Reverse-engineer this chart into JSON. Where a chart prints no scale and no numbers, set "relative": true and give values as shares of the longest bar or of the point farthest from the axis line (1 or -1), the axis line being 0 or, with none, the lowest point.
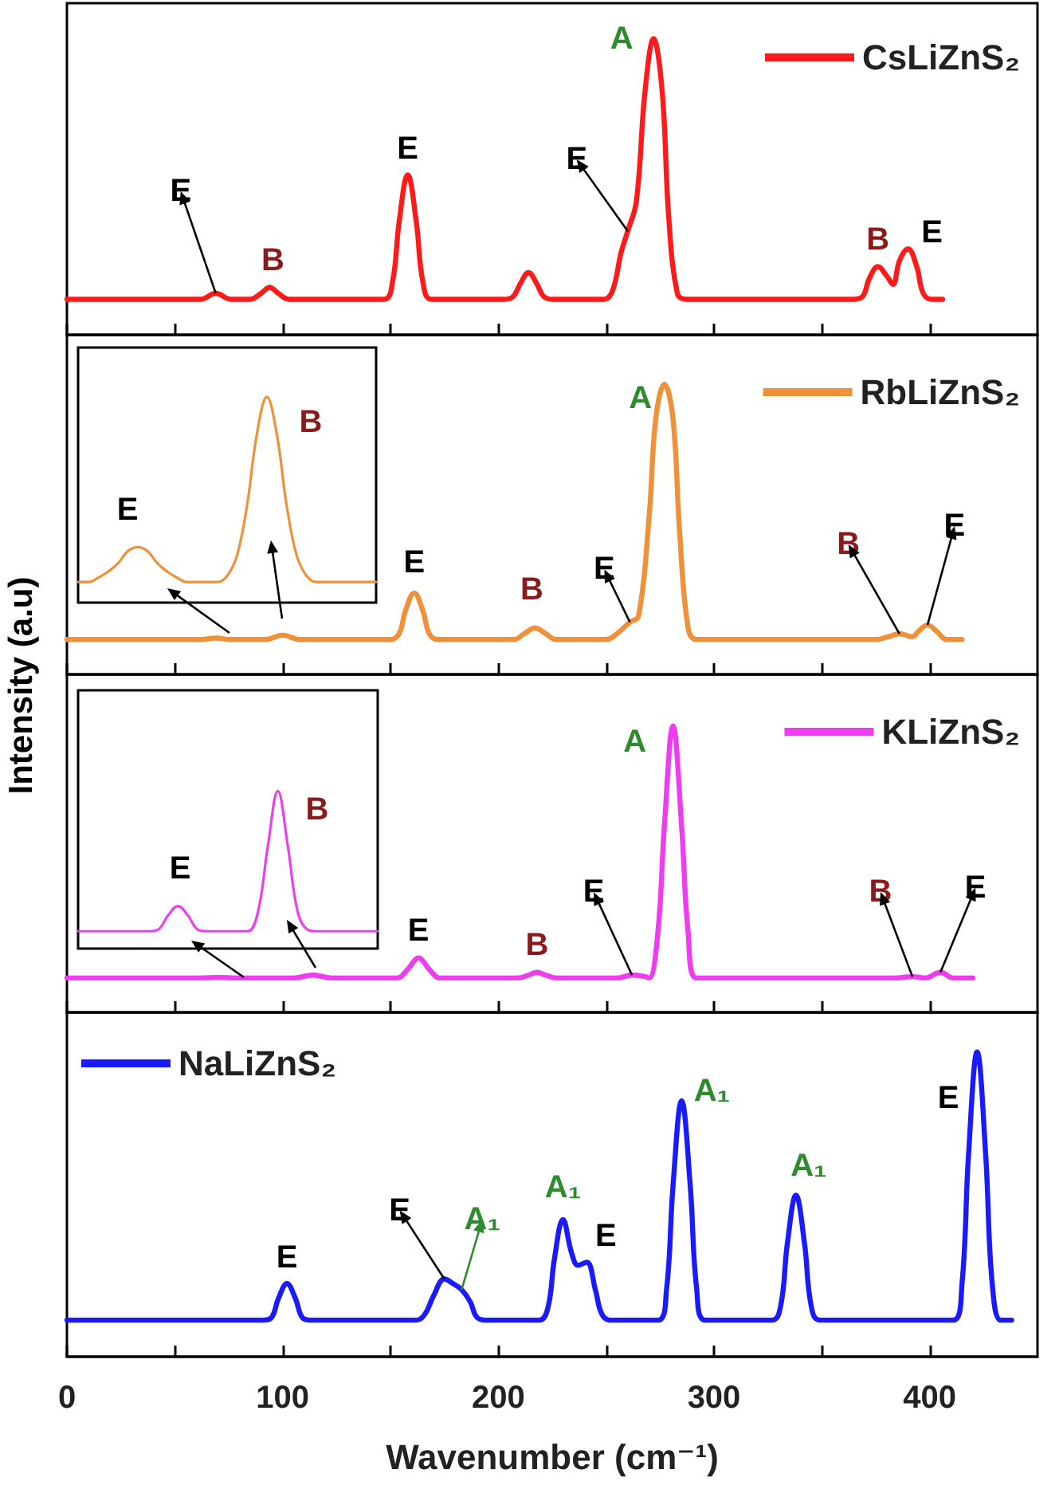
{
  "chart_data": [
    {
      "type": "line",
      "relative": true,
      "xlim": [
        0,
        450
      ],
      "xticks": [
        0,
        {
          "value": 50,
          "label": null
        },
        100,
        {
          "value": 150,
          "label": null
        },
        200,
        {
          "value": 250,
          "label": null
        },
        300,
        {
          "value": 350,
          "label": null
        },
        400
      ],
      "tick_labels": false,
      "legend": "top right",
      "series": [
        {
          "name": "CsLiZnS₂",
          "color": "#ff1a1a",
          "x": [
            0,
            62,
            69,
            76,
            85,
            90,
            94,
            98,
            103,
            147,
            151,
            154,
            158,
            162,
            165,
            169,
            203,
            207,
            210,
            214,
            218,
            221,
            225,
            249,
            253,
            257,
            260,
            264,
            268,
            272,
            276,
            279,
            283,
            287,
            365,
            369,
            372,
            376,
            380,
            383,
            386,
            390,
            394,
            397,
            401,
            406
          ],
          "values": [
            0.12,
            0.12,
            0.14,
            0.12,
            0.12,
            0.14,
            0.16,
            0.14,
            0.12,
            0.12,
            0.18,
            0.38,
            0.54,
            0.38,
            0.18,
            0.12,
            0.12,
            0.13,
            0.17,
            0.21,
            0.17,
            0.13,
            0.12,
            0.12,
            0.15,
            0.28,
            0.35,
            0.45,
            0.82,
            1,
            0.82,
            0.4,
            0.14,
            0.12,
            0.12,
            0.13,
            0.19,
            0.23,
            0.2,
            0.17,
            0.25,
            0.29,
            0.23,
            0.14,
            0.12,
            0.12
          ]
        }
      ],
      "annotations": [
        {
          "text": "E",
          "x": 69,
          "y": 0.14
        },
        {
          "text": "B",
          "x": 94,
          "y": 0.16
        },
        {
          "text": "E",
          "x": 158,
          "y": 0.54
        },
        {
          "text": "E",
          "x": 260,
          "y": 0.35
        },
        {
          "text": "A",
          "x": 272,
          "y": 1
        },
        {
          "text": "B",
          "x": 376,
          "y": 0.23
        },
        {
          "text": "E",
          "x": 390,
          "y": 0.29
        }
      ]
    },
    {
      "type": "line",
      "relative": true,
      "xlim": [
        0,
        450
      ],
      "xticks": [
        0,
        {
          "value": 50,
          "label": null
        },
        100,
        {
          "value": 150,
          "label": null
        },
        200,
        {
          "value": 250,
          "label": null
        },
        300,
        {
          "value": 350,
          "label": null
        },
        400
      ],
      "tick_labels": false,
      "legend": "top right",
      "series": [
        {
          "name": "RbLiZnS₂",
          "color": "#f0913a",
          "x": [
            0,
            62,
            69,
            76,
            92,
            100,
            108,
            150,
            154,
            157,
            161,
            165,
            168,
            172,
            207,
            212,
            217,
            222,
            227,
            250,
            255,
            261,
            265,
            270,
            273,
            277,
            281,
            284,
            288,
            292,
            375,
            381,
            386,
            392,
            395,
            399,
            403,
            408,
            415
          ],
          "values": [
            0.12,
            0.12,
            0.125,
            0.12,
            0.12,
            0.135,
            0.12,
            0.12,
            0.14,
            0.22,
            0.28,
            0.22,
            0.14,
            0.12,
            0.12,
            0.14,
            0.16,
            0.14,
            0.12,
            0.12,
            0.14,
            0.18,
            0.2,
            0.55,
            0.88,
            1,
            0.88,
            0.5,
            0.16,
            0.12,
            0.12,
            0.13,
            0.14,
            0.13,
            0.15,
            0.17,
            0.15,
            0.12,
            0.12
          ]
        }
      ],
      "annotations": [
        {
          "text": "E",
          "x": 261,
          "y": 0.18
        },
        {
          "text": "E",
          "x": 161,
          "y": 0.28
        },
        {
          "text": "B",
          "x": 217,
          "y": 0.16
        },
        {
          "text": "A",
          "x": 277,
          "y": 1
        },
        {
          "text": "B",
          "x": 386,
          "y": 0.14
        },
        {
          "text": "E",
          "x": 399,
          "y": 0.17
        }
      ]
    },
    {
      "type": "line",
      "relative": true,
      "tick_labels": false,
      "categories": [
        null,
        null,
        null,
        null,
        null,
        null,
        null,
        null,
        null,
        null,
        null,
        null,
        null,
        null,
        null,
        null,
        null,
        null,
        null,
        null,
        null,
        null,
        null,
        null,
        null,
        null,
        null,
        null,
        null,
        null,
        null
      ],
      "series": [
        {
          "color": "#f0913a",
          "values": [
            0.1,
            0.1,
            0.12,
            0.15,
            0.19,
            0.25,
            0.27,
            0.25,
            0.19,
            0.15,
            0.12,
            0.1,
            0.1,
            0.1,
            0.1,
            0.13,
            0.23,
            0.47,
            0.82,
            1,
            0.82,
            0.47,
            0.23,
            0.13,
            0.1,
            0.1,
            0.1,
            0.1,
            0.1,
            0.1,
            0.1
          ]
        }
      ],
      "annotations": [
        "E",
        "B"
      ]
    },
    {
      "type": "line",
      "relative": true,
      "xlim": [
        0,
        450
      ],
      "xticks": [
        0,
        {
          "value": 50,
          "label": null
        },
        100,
        {
          "value": 150,
          "label": null
        },
        200,
        {
          "value": 250,
          "label": null
        },
        300,
        {
          "value": 350,
          "label": null
        },
        400
      ],
      "tick_labels": false,
      "legend": "top right",
      "series": [
        {
          "name": "KLiZnS₂",
          "color": "#f03cf0",
          "x": [
            0,
            62,
            70,
            78,
            105,
            114,
            123,
            153,
            158,
            163,
            168,
            173,
            209,
            214,
            218,
            222,
            227,
            255,
            262,
            268,
            270,
            274,
            277,
            281,
            285,
            288,
            292,
            384,
            392,
            398,
            405,
            411,
            420
          ],
          "values": [
            0.12,
            0.12,
            0.122,
            0.12,
            0.12,
            0.13,
            0.12,
            0.12,
            0.15,
            0.19,
            0.15,
            0.12,
            0.12,
            0.13,
            0.14,
            0.13,
            0.12,
            0.12,
            0.13,
            0.125,
            0.12,
            0.28,
            0.65,
            1,
            0.65,
            0.28,
            0.12,
            0.12,
            0.125,
            0.12,
            0.14,
            0.12,
            0.12
          ]
        }
      ],
      "annotations": [
        {
          "text": "E",
          "x": 163,
          "y": 0.19
        },
        {
          "text": "B",
          "x": 218,
          "y": 0.14
        },
        {
          "text": "E",
          "x": 262,
          "y": 0.13
        },
        {
          "text": "A",
          "x": 281,
          "y": 1
        },
        {
          "text": "B",
          "x": 392,
          "y": 0.125
        },
        {
          "text": "E",
          "x": 405,
          "y": 0.14
        }
      ]
    },
    {
      "type": "line",
      "relative": true,
      "tick_labels": false,
      "categories": [
        null,
        null,
        null,
        null,
        null,
        null,
        null,
        null,
        null,
        null,
        null,
        null,
        null,
        null,
        null,
        null,
        null,
        null,
        null,
        null,
        null,
        null,
        null,
        null,
        null,
        null,
        null,
        null,
        null,
        null,
        null
      ],
      "series": [
        {
          "color": "#f03cf0",
          "values": [
            0.11,
            0.11,
            0.11,
            0.11,
            0.11,
            0.11,
            0.11,
            0.11,
            0.12,
            0.21,
            0.27,
            0.21,
            0.12,
            0.11,
            0.11,
            0.11,
            0.11,
            0.11,
            0.23,
            0.65,
            1,
            0.65,
            0.23,
            0.12,
            0.11,
            0.11,
            0.11,
            0.11,
            0.11,
            0.11,
            0.11
          ]
        }
      ],
      "annotations": [
        "E",
        "B"
      ]
    },
    {
      "type": "line",
      "relative": true,
      "xlim": [
        0,
        450
      ],
      "xticks": [
        0,
        {
          "value": 50,
          "label": null
        },
        100,
        {
          "value": 150,
          "label": null
        },
        200,
        {
          "value": 250,
          "label": null
        },
        300,
        {
          "value": 350,
          "label": null
        },
        400
      ],
      "tick_labels": "x",
      "legend": "top left",
      "xlabel": "Wavenumber (cm⁻¹)",
      "ylabel": "Intensity (a.u)",
      "series": [
        {
          "name": "NaLiZnS₂",
          "color": "#1a1aff",
          "x": [
            0,
            91,
            95,
            98,
            102,
            106,
            109,
            113,
            162,
            166,
            170,
            175,
            179,
            183,
            187,
            190,
            194,
            219,
            223,
            226,
            230,
            234,
            237,
            241,
            245,
            248,
            252,
            274,
            278,
            281,
            285,
            289,
            292,
            296,
            327,
            331,
            334,
            338,
            342,
            345,
            349,
            411,
            415,
            418,
            422,
            426,
            429,
            433,
            438
          ],
          "values": [
            0.12,
            0.12,
            0.13,
            0.19,
            0.24,
            0.19,
            0.13,
            0.12,
            0.12,
            0.14,
            0.2,
            0.255,
            0.24,
            0.22,
            0.18,
            0.13,
            0.12,
            0.12,
            0.16,
            0.32,
            0.45,
            0.34,
            0.3,
            0.31,
            0.22,
            0.14,
            0.12,
            0.12,
            0.22,
            0.56,
            0.84,
            0.56,
            0.22,
            0.12,
            0.12,
            0.17,
            0.37,
            0.53,
            0.37,
            0.17,
            0.12,
            0.12,
            0.24,
            0.66,
            1,
            0.66,
            0.24,
            0.12,
            0.12
          ]
        }
      ],
      "annotations": [
        {
          "text": "E",
          "x": 102,
          "y": 0.24
        },
        {
          "text": "E",
          "x": 175,
          "y": 0.255
        },
        {
          "text": "A₁",
          "x": 183,
          "y": 0.22
        },
        {
          "text": "A₁",
          "x": 230,
          "y": 0.45
        },
        {
          "text": "E",
          "x": 241,
          "y": 0.31
        },
        {
          "text": "A₁",
          "x": 285,
          "y": 0.84
        },
        {
          "text": "A₁",
          "x": 338,
          "y": 0.53
        },
        {
          "text": "E",
          "x": 422,
          "y": 1
        }
      ]
    }
  ]
}
